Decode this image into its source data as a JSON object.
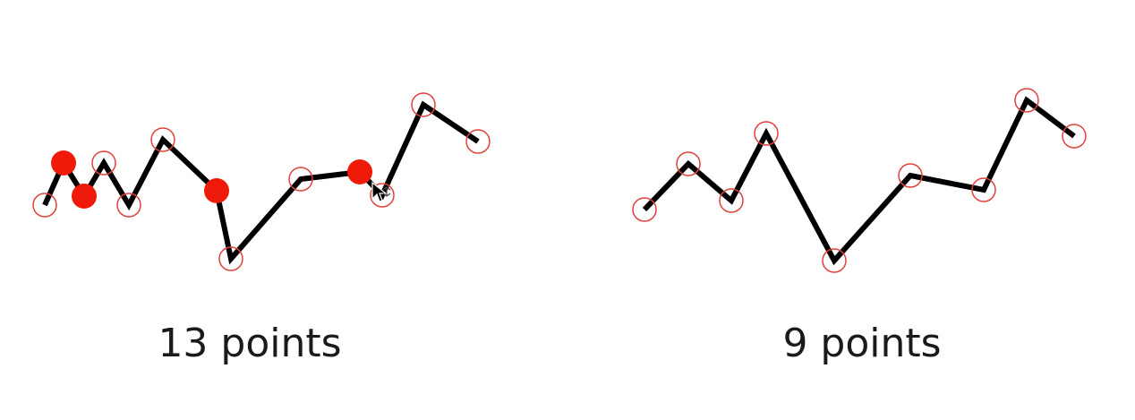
{
  "colors": {
    "line": "#000000",
    "point_outline": "#e0413a",
    "removed_point_fill": "#f01a0a",
    "background": "#ffffff"
  },
  "panels": [
    {
      "caption": "13 points",
      "polyline": "full",
      "points": [
        {
          "kind": "kept"
        },
        {
          "kind": "removed"
        },
        {
          "kind": "removed"
        },
        {
          "kind": "kept"
        },
        {
          "kind": "kept"
        },
        {
          "kind": "kept"
        },
        {
          "kind": "removed"
        },
        {
          "kind": "kept"
        },
        {
          "kind": "kept"
        },
        {
          "kind": "removed"
        },
        {
          "kind": "kept"
        },
        {
          "kind": "kept"
        },
        {
          "kind": "kept"
        }
      ]
    },
    {
      "caption": "9 points",
      "polyline": "simplified",
      "points": [
        {
          "kind": "kept"
        },
        {
          "kind": "kept"
        },
        {
          "kind": "kept"
        },
        {
          "kind": "kept"
        },
        {
          "kind": "kept"
        },
        {
          "kind": "kept"
        },
        {
          "kind": "kept"
        },
        {
          "kind": "kept"
        },
        {
          "kind": "kept"
        }
      ]
    }
  ],
  "cursor_icon": "move-cursor-icon"
}
